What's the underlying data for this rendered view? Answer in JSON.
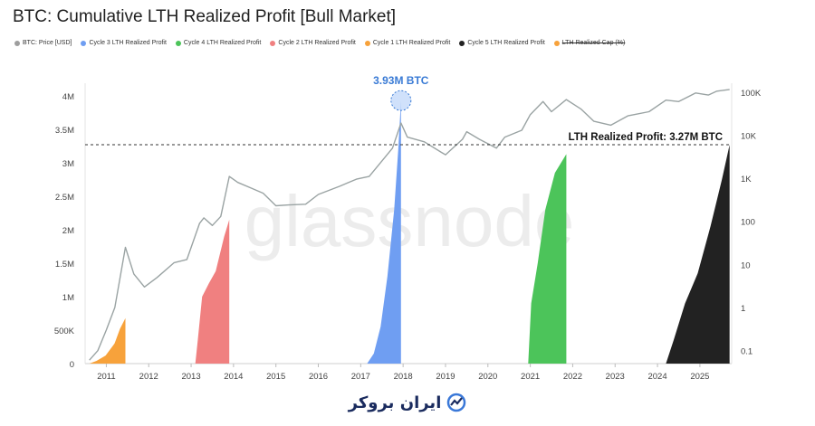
{
  "title": "BTC: Cumulative LTH Realized Profit [Bull Market]",
  "legend": [
    {
      "label": "BTC: Price [USD]",
      "color": "#9e9e9e",
      "strike": false
    },
    {
      "label": "Cycle 3 LTH Realized Profit",
      "color": "#6f9ef2",
      "strike": false
    },
    {
      "label": "Cycle 4 LTH Realized Profit",
      "color": "#4cc45a",
      "strike": false
    },
    {
      "label": "Cycle 2 LTH Realized Profit",
      "color": "#f08080",
      "strike": false
    },
    {
      "label": "Cycle 1 LTH Realized Profit",
      "color": "#f7a23b",
      "strike": false
    },
    {
      "label": "Cycle 5 LTH Realized Profit",
      "color": "#222222",
      "strike": false
    },
    {
      "label": "LTH Realized Cap (%)",
      "color": "#f7a23b",
      "strike": true
    }
  ],
  "watermark": "glassnode",
  "footer_brand": "ایران بروکر",
  "chart_data": {
    "type": "area",
    "x": [
      "2011",
      "2012",
      "2013",
      "2014",
      "2015",
      "2016",
      "2017",
      "2018",
      "2019",
      "2020",
      "2021",
      "2022",
      "2023",
      "2024",
      "2025"
    ],
    "xlabel": "",
    "ylabel": "",
    "ylim": [
      0,
      4000000
    ],
    "y_ticks": [
      "0",
      "500K",
      "1M",
      "1.5M",
      "2M",
      "2.5M",
      "3M",
      "3.5M",
      "4M"
    ],
    "y2_scale": "log",
    "y2_ticks": [
      "0.1",
      "1",
      "10",
      "100",
      "1K",
      "10K",
      "100K"
    ],
    "grid": false,
    "series": [
      {
        "name": "Cycle 1 LTH Realized Profit",
        "color": "#f7a23b",
        "start": 2010.6,
        "end": 2011.45,
        "points": [
          [
            0,
            0
          ],
          [
            0.2,
            40000
          ],
          [
            0.45,
            120000
          ],
          [
            0.7,
            300000
          ],
          [
            0.85,
            520000
          ],
          [
            1,
            680000
          ]
        ]
      },
      {
        "name": "Cycle 2 LTH Realized Profit",
        "color": "#f08080",
        "start": 2013.1,
        "end": 2013.9,
        "points": [
          [
            0,
            0
          ],
          [
            0.07,
            350000
          ],
          [
            0.2,
            1000000
          ],
          [
            0.4,
            1200000
          ],
          [
            0.6,
            1380000
          ],
          [
            0.85,
            1900000
          ],
          [
            1,
            2150000
          ]
        ]
      },
      {
        "name": "Cycle 3 LTH Realized Profit",
        "color": "#6f9ef2",
        "start": 2017.15,
        "end": 2017.95,
        "points": [
          [
            0,
            0
          ],
          [
            0.2,
            150000
          ],
          [
            0.4,
            550000
          ],
          [
            0.6,
            1300000
          ],
          [
            0.8,
            2300000
          ],
          [
            0.92,
            3200000
          ],
          [
            1,
            3930000
          ]
        ]
      },
      {
        "name": "Cycle 4 LTH Realized Profit",
        "color": "#4cc45a",
        "start": 2020.95,
        "end": 2021.85,
        "points": [
          [
            0,
            0
          ],
          [
            0.08,
            900000
          ],
          [
            0.25,
            1500000
          ],
          [
            0.45,
            2300000
          ],
          [
            0.7,
            2850000
          ],
          [
            1,
            3130000
          ]
        ]
      },
      {
        "name": "Cycle 5 LTH Realized Profit",
        "color": "#222222",
        "start": 2024.2,
        "end": 2025.7,
        "points": [
          [
            0,
            0
          ],
          [
            0.12,
            350000
          ],
          [
            0.3,
            900000
          ],
          [
            0.5,
            1350000
          ],
          [
            0.7,
            2050000
          ],
          [
            0.88,
            2750000
          ],
          [
            1,
            3270000
          ]
        ]
      }
    ],
    "price": {
      "name": "BTC: Price [USD]",
      "color": "#9aa3a3",
      "points": [
        [
          2010.6,
          0.06
        ],
        [
          2010.8,
          0.1
        ],
        [
          2011.0,
          0.3
        ],
        [
          2011.2,
          1
        ],
        [
          2011.45,
          25
        ],
        [
          2011.65,
          6
        ],
        [
          2011.9,
          3
        ],
        [
          2012.2,
          5
        ],
        [
          2012.6,
          11
        ],
        [
          2012.9,
          13
        ],
        [
          2013.2,
          90
        ],
        [
          2013.3,
          120
        ],
        [
          2013.5,
          80
        ],
        [
          2013.7,
          130
        ],
        [
          2013.9,
          1100
        ],
        [
          2014.1,
          800
        ],
        [
          2014.4,
          600
        ],
        [
          2014.7,
          450
        ],
        [
          2015.0,
          230
        ],
        [
          2015.3,
          240
        ],
        [
          2015.7,
          250
        ],
        [
          2016.0,
          420
        ],
        [
          2016.5,
          650
        ],
        [
          2016.9,
          950
        ],
        [
          2017.2,
          1100
        ],
        [
          2017.5,
          2500
        ],
        [
          2017.75,
          5000
        ],
        [
          2017.95,
          19000
        ],
        [
          2018.1,
          9000
        ],
        [
          2018.5,
          7000
        ],
        [
          2018.9,
          4000
        ],
        [
          2019.0,
          3500
        ],
        [
          2019.4,
          8000
        ],
        [
          2019.5,
          12000
        ],
        [
          2019.8,
          8000
        ],
        [
          2020.2,
          5000
        ],
        [
          2020.4,
          9000
        ],
        [
          2020.8,
          13000
        ],
        [
          2021.0,
          30000
        ],
        [
          2021.3,
          60000
        ],
        [
          2021.5,
          35000
        ],
        [
          2021.85,
          67000
        ],
        [
          2022.2,
          40000
        ],
        [
          2022.5,
          21000
        ],
        [
          2022.9,
          17000
        ],
        [
          2023.3,
          28000
        ],
        [
          2023.8,
          35000
        ],
        [
          2024.2,
          65000
        ],
        [
          2024.5,
          60000
        ],
        [
          2024.9,
          95000
        ],
        [
          2025.2,
          85000
        ],
        [
          2025.4,
          105000
        ],
        [
          2025.7,
          115000
        ]
      ]
    },
    "annotations": [
      {
        "text": "3.93M BTC",
        "color": "#3a7bd5"
      },
      {
        "text": "LTH Realized Profit: 3.27M BTC",
        "color": "#111111"
      }
    ],
    "reference_line": {
      "value": 3270000
    }
  }
}
